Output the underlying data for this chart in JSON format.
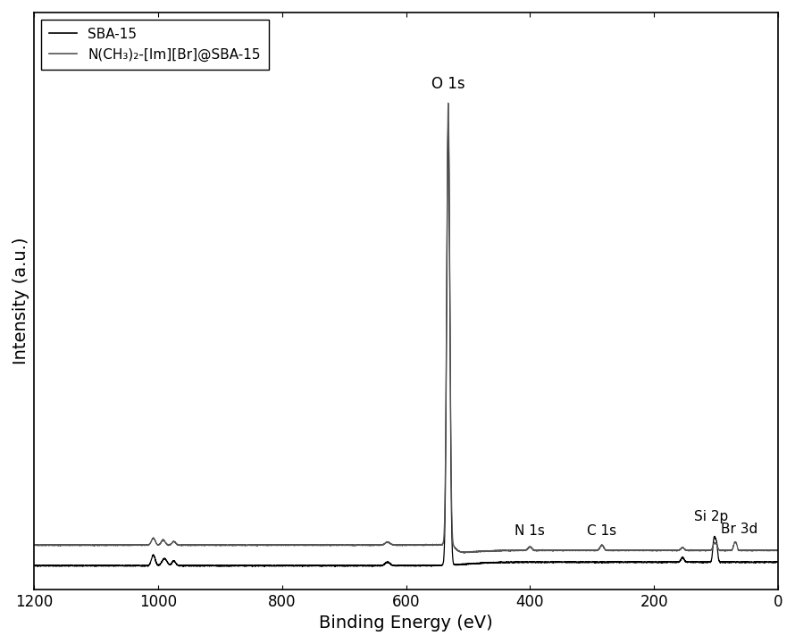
{
  "xlabel": "Binding Energy (eV)",
  "ylabel": "Intensity (a.u.)",
  "legend_labels": [
    "SBA-15",
    "N(CH₃)₂-[Im][Br]@SBA-15"
  ],
  "line_color_sba15": "#000000",
  "line_color_modified": "#555555",
  "background_color": "#ffffff",
  "figure_width": 8.9,
  "figure_height": 7.21,
  "xlim": [
    1200,
    0
  ],
  "annot_o1s": "O 1s",
  "annot_n1s": "N 1s",
  "annot_c1s": "C 1s",
  "annot_si2p": "Si 2p",
  "annot_br3d": "Br 3d"
}
